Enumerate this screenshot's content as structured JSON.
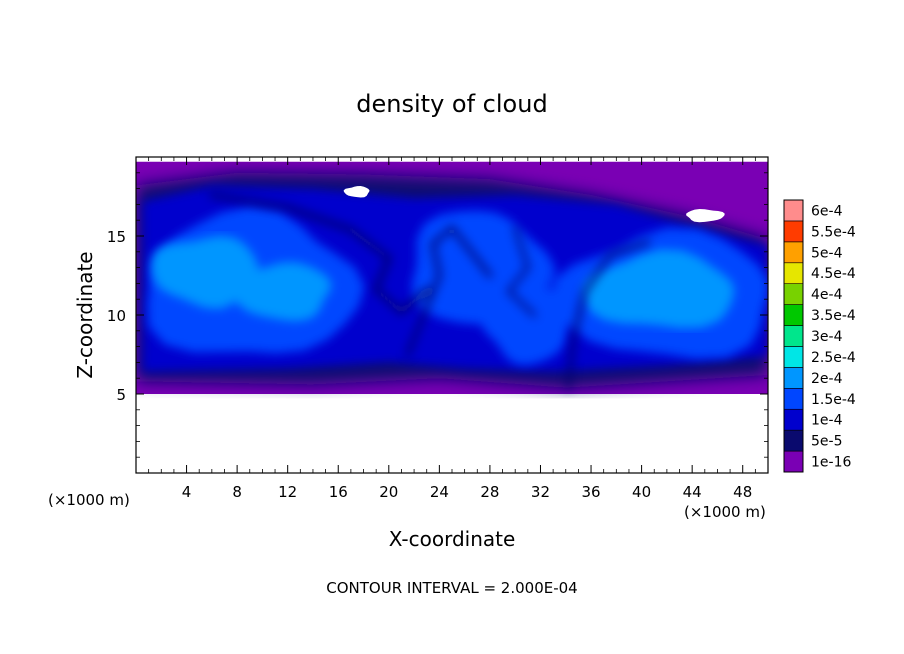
{
  "chart_data": {
    "type": "heatmap",
    "title": "density of cloud",
    "xlabel": "X-coordinate",
    "ylabel": "Z-coordinate",
    "x_unit_label": "(×1000 m)",
    "x_ticks": [
      4,
      8,
      12,
      16,
      20,
      24,
      28,
      32,
      36,
      40,
      44,
      48
    ],
    "y_ticks": [
      5,
      10,
      15
    ],
    "xlim": [
      0,
      50
    ],
    "ylim": [
      0,
      20
    ],
    "footer": "CONTOUR INTERVAL = 2.000E-04",
    "colorbar": {
      "labels": [
        "1e-16",
        "5e-5",
        "1e-4",
        "1.5e-4",
        "2e-4",
        "2.5e-4",
        "3e-4",
        "3.5e-4",
        "4e-4",
        "4.5e-4",
        "5e-4",
        "5.5e-4",
        "6e-4"
      ],
      "colors": [
        "#7a00b4",
        "#0a0a6e",
        "#0000cd",
        "#0046ff",
        "#0096ff",
        "#00e6e6",
        "#00e68c",
        "#00c800",
        "#78d200",
        "#e6e600",
        "#ffa000",
        "#ff3c00",
        "#ff8c8c"
      ]
    },
    "field": {
      "cloud_base_z": 5,
      "cloud_top_z": 19.7,
      "levels": [
        {
          "level_index": 1,
          "value": "5e-5",
          "description": "outer dark-blue shell of cloud region"
        },
        {
          "level_index": 2,
          "value": "1e-4",
          "description": "blue band"
        },
        {
          "level_index": 3,
          "value": "1.5e-4",
          "description": "light-blue interior"
        },
        {
          "level_index": 4,
          "value": "2e-4",
          "description": "cyan cores near x=5-12 and x=36-48, z=9-14"
        }
      ]
    }
  }
}
